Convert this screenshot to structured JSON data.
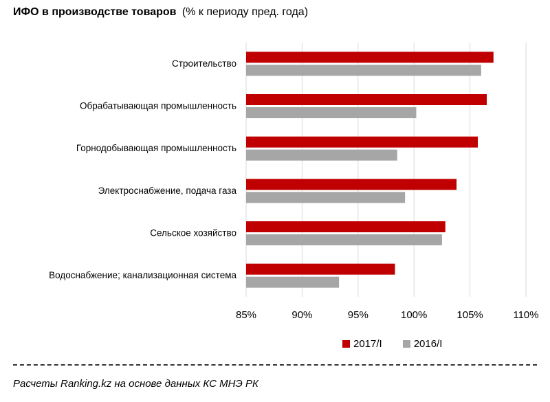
{
  "chart_data": {
    "type": "bar",
    "orientation": "horizontal",
    "title": "ИФО в производстве товаров",
    "subtitle": "(% к периоду пред. года)",
    "categories": [
      "Строительство",
      "Обрабатывающая промышленность",
      "Горнодобывающая промышленность",
      "Электроснабжение, подача газа",
      "Сельское хозяйство",
      "Водоснабжение; канализационная система"
    ],
    "series": [
      {
        "name": "2017/I",
        "color": "#c00000",
        "values": [
          107.1,
          106.5,
          105.7,
          103.8,
          102.8,
          98.3
        ]
      },
      {
        "name": "2016/I",
        "color": "#a6a6a6",
        "values": [
          106.0,
          100.2,
          98.5,
          99.2,
          102.5,
          93.3
        ]
      }
    ],
    "xlim": [
      85,
      110
    ],
    "xticks": [
      85,
      90,
      95,
      100,
      105,
      110
    ],
    "xtick_labels": [
      "85%",
      "90%",
      "95%",
      "100%",
      "105%",
      "110%"
    ],
    "grid": "vertical",
    "legend_position": "bottom-right"
  },
  "footer": {
    "source": "Расчеты Ranking.kz на основе данных КС МНЭ РК"
  }
}
